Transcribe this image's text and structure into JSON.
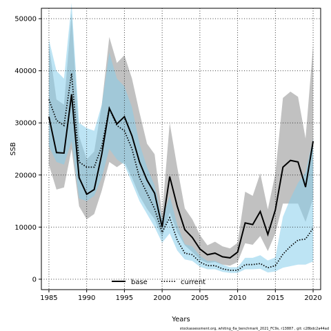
{
  "chart_data": {
    "type": "line",
    "xlabel": "Years",
    "ylabel": "SSB",
    "xlim": [
      1984,
      2021
    ],
    "ylim": [
      -2000,
      52000
    ],
    "xticks": [
      1985,
      1990,
      1995,
      2000,
      2005,
      2010,
      2015,
      2020
    ],
    "yticks": [
      0,
      10000,
      20000,
      30000,
      40000,
      50000
    ],
    "grid": true,
    "legend_position": "bottom-center",
    "footer": "stockassessment.org, whiting_6a_benchmark_2021_FC9s, r13887 , git: c28bdc2a44ad",
    "x": [
      1985,
      1986,
      1987,
      1988,
      1989,
      1990,
      1991,
      1992,
      1993,
      1994,
      1995,
      1996,
      1997,
      1998,
      1999,
      2000,
      2001,
      2002,
      2003,
      2004,
      2005,
      2006,
      2007,
      2008,
      2009,
      2010,
      2011,
      2012,
      2013,
      2014,
      2015,
      2016,
      2017,
      2018,
      2019,
      2020
    ],
    "series": [
      {
        "name": "base",
        "color": "#000000",
        "band_color": "#bebebe",
        "line_style": "solid",
        "values": [
          31200,
          24300,
          24200,
          35500,
          19500,
          16300,
          17200,
          24000,
          32800,
          29800,
          31200,
          27500,
          22500,
          19000,
          16500,
          10000,
          19700,
          14000,
          9500,
          8000,
          5800,
          4700,
          5000,
          4300,
          4100,
          5200,
          10800,
          10500,
          13000,
          8600,
          13300,
          21500,
          22800,
          22500,
          17700,
          26500
        ],
        "lower": [
          22000,
          17200,
          17600,
          25000,
          14000,
          11500,
          12500,
          17000,
          22500,
          21500,
          22500,
          19500,
          16000,
          13500,
          11500,
          8000,
          12800,
          9000,
          6500,
          5200,
          3800,
          3100,
          3300,
          2800,
          2600,
          3300,
          6900,
          6600,
          8300,
          5400,
          8800,
          14500,
          14500,
          14500,
          11000,
          15500
        ],
        "upper": [
          45000,
          34500,
          33500,
          51000,
          27500,
          23000,
          24500,
          33500,
          46500,
          41500,
          43000,
          38500,
          32000,
          26000,
          24000,
          12500,
          30000,
          21500,
          13600,
          11500,
          8500,
          6500,
          7200,
          6300,
          5900,
          7000,
          16800,
          16000,
          20300,
          13400,
          20300,
          34800,
          36000,
          35000,
          27000,
          45000
        ]
      },
      {
        "name": "current",
        "color": "#000000",
        "band_color": "#87ceeb",
        "line_style": "dotted",
        "values": [
          34500,
          30500,
          29500,
          39500,
          22500,
          21500,
          21500,
          25500,
          32800,
          29500,
          28500,
          25000,
          19500,
          16500,
          13500,
          9000,
          11800,
          7500,
          5000,
          4700,
          3300,
          2600,
          2600,
          2000,
          1700,
          1700,
          2800,
          2800,
          3000,
          2200,
          2600,
          4800,
          6300,
          7500,
          7700,
          9800
        ],
        "lower": [
          25500,
          22500,
          22000,
          26500,
          15500,
          15000,
          16000,
          19500,
          25000,
          23000,
          22000,
          18500,
          15000,
          12500,
          10000,
          7000,
          8800,
          5500,
          3800,
          3500,
          2400,
          1900,
          1900,
          1400,
          1200,
          1200,
          1900,
          1900,
          2000,
          1300,
          1500,
          2200,
          2500,
          2800,
          2800,
          3400
        ],
        "upper": [
          46000,
          40000,
          38500,
          53000,
          30000,
          29000,
          28500,
          33500,
          43500,
          38500,
          37000,
          33000,
          26000,
          21500,
          18000,
          11500,
          16000,
          10500,
          6700,
          6300,
          4500,
          3500,
          3500,
          2800,
          2300,
          2300,
          4100,
          4100,
          4600,
          3600,
          4200,
          12000,
          15500,
          18500,
          20500,
          27000
        ]
      }
    ]
  }
}
